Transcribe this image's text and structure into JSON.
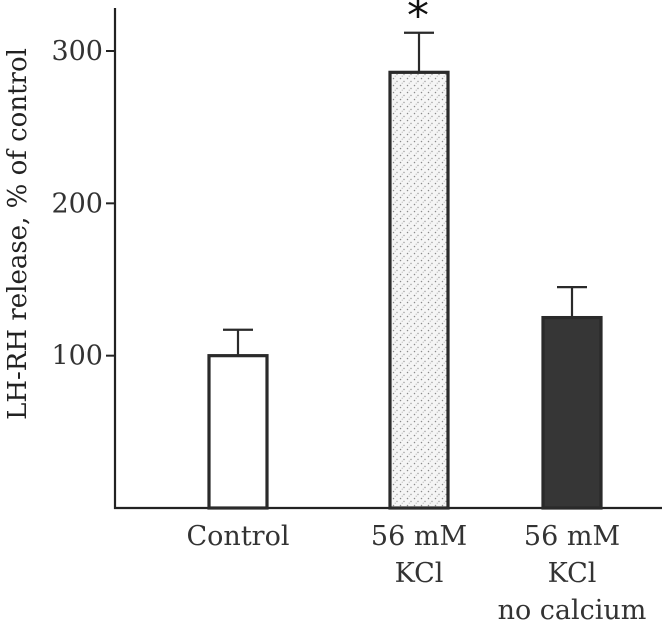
{
  "chart_data": {
    "type": "bar",
    "title": "",
    "xlabel": "",
    "ylabel": "LH-RH release, % of control",
    "ylim": [
      0,
      330
    ],
    "yticks": [
      100,
      200,
      300
    ],
    "grid": false,
    "legend": "none",
    "categories": [
      {
        "lines": [
          "Control"
        ]
      },
      {
        "lines": [
          "56 mM",
          "KCl"
        ]
      },
      {
        "lines": [
          "56 mM",
          "KCl",
          "no calcium"
        ]
      }
    ],
    "values": [
      100,
      286,
      125
    ],
    "errors": [
      17,
      26,
      20
    ],
    "annotations": [
      "",
      "*",
      ""
    ],
    "bar_styles": [
      {
        "fill": "#ffffff",
        "pattern": "none"
      },
      {
        "fill": "#f4f4f4",
        "pattern": "stipple"
      },
      {
        "fill": "#363636",
        "pattern": "none"
      }
    ]
  }
}
